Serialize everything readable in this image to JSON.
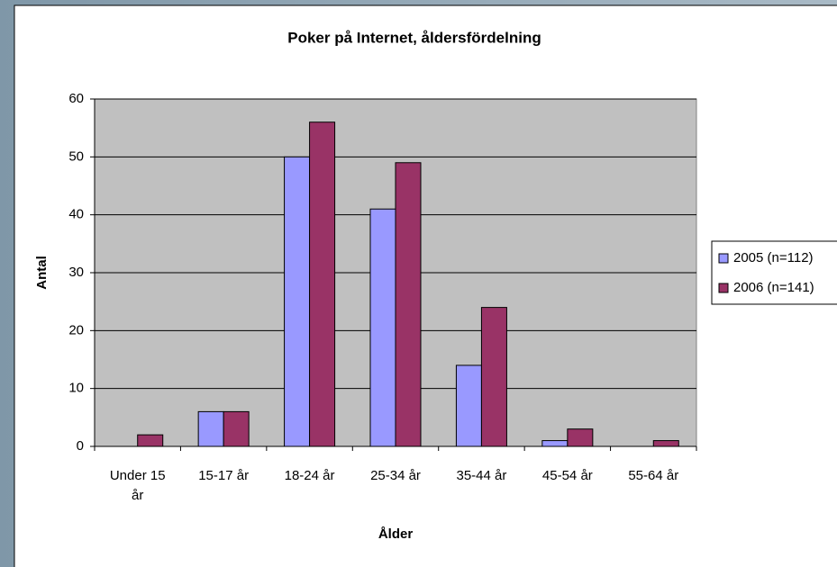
{
  "chart_data": {
    "type": "bar",
    "title": "Poker på Internet, åldersfördelning",
    "x_label": "Ålder",
    "y_label": "Antal",
    "categories": [
      "Under 15 år",
      "15-17 år",
      "18-24 år",
      "25-34 år",
      "35-44 år",
      "45-54 år",
      "55-64 år"
    ],
    "series": [
      {
        "name": "2005 (n=112)",
        "color": "#9999ff",
        "values": [
          0,
          6,
          50,
          41,
          14,
          1,
          0
        ]
      },
      {
        "name": "2006 (n=141)",
        "color": "#993366",
        "values": [
          2,
          6,
          56,
          49,
          24,
          3,
          1
        ]
      }
    ],
    "ylim": [
      0,
      60
    ],
    "yticks": [
      0,
      10,
      20,
      30,
      40,
      50,
      60
    ],
    "grid": true,
    "legend": "right"
  }
}
